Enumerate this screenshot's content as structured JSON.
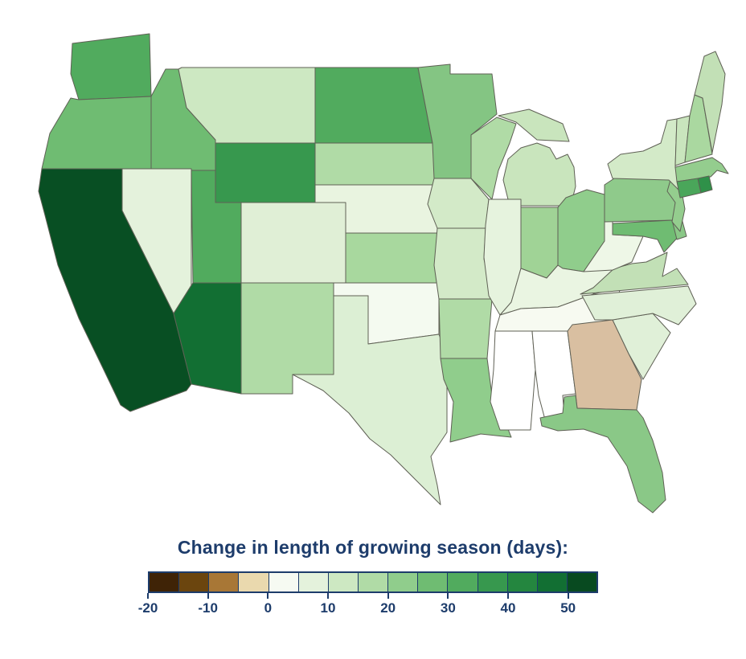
{
  "title": "Change in length of growing season (days):",
  "colors": {
    "background": "#ffffff",
    "title_text": "#1d3c6b",
    "state_border": "#5f6055",
    "legend_border": "#1d3c6b",
    "no_change_fill": "#ffffff"
  },
  "legend": {
    "range": [
      -20,
      55
    ],
    "tick_labels": [
      "-20",
      "-10",
      "0",
      "10",
      "20",
      "30",
      "40",
      "50"
    ],
    "tick_values": [
      -20,
      -10,
      0,
      10,
      20,
      30,
      40,
      50
    ],
    "segment_size_days": 5,
    "segment_colors": [
      "#3f2306",
      "#6b450e",
      "#a87736",
      "#ead9ae",
      "#f6faf2",
      "#e4f2dc",
      "#cde8c2",
      "#b0dba6",
      "#90cd8c",
      "#6fbc72",
      "#51ab5e",
      "#37984e",
      "#24863f",
      "#126f33",
      "#084a20"
    ]
  },
  "chart_data": {
    "type": "choropleth",
    "title": "Change in length of growing season (days)",
    "unit": "days",
    "region": "Contiguous United States",
    "legend_position": "bottom",
    "color_scale": "brown (decrease) to white (no change) to dark green (increase), -20 to 50+ days",
    "states": [
      {
        "name": "Washington",
        "abbr": "WA",
        "value": 31,
        "color": "#51ab5e"
      },
      {
        "name": "Oregon",
        "abbr": "OR",
        "value": 26,
        "color": "#6fbc72"
      },
      {
        "name": "California",
        "abbr": "CA",
        "value": 52,
        "color": "#084f23"
      },
      {
        "name": "Nevada",
        "abbr": "NV",
        "value": 6,
        "color": "#e4f2dc"
      },
      {
        "name": "Idaho",
        "abbr": "ID",
        "value": 26,
        "color": "#6fbc72"
      },
      {
        "name": "Montana",
        "abbr": "MT",
        "value": 10,
        "color": "#cde8c2"
      },
      {
        "name": "Wyoming",
        "abbr": "WY",
        "value": 36,
        "color": "#37984e"
      },
      {
        "name": "Utah",
        "abbr": "UT",
        "value": 31,
        "color": "#51ab5e"
      },
      {
        "name": "Colorado",
        "abbr": "CO",
        "value": 8,
        "color": "#e0efd6"
      },
      {
        "name": "Arizona",
        "abbr": "AZ",
        "value": 46,
        "color": "#126f33"
      },
      {
        "name": "New Mexico",
        "abbr": "NM",
        "value": 16,
        "color": "#b0dba6"
      },
      {
        "name": "North Dakota",
        "abbr": "ND",
        "value": 31,
        "color": "#51ab5e"
      },
      {
        "name": "South Dakota",
        "abbr": "SD",
        "value": 18,
        "color": "#b0dba6"
      },
      {
        "name": "Nebraska",
        "abbr": "NE",
        "value": 5,
        "color": "#e9f4e0"
      },
      {
        "name": "Kansas",
        "abbr": "KS",
        "value": 18,
        "color": "#a8d89e"
      },
      {
        "name": "Oklahoma",
        "abbr": "OK",
        "value": 2,
        "color": "#f4faf0"
      },
      {
        "name": "Texas",
        "abbr": "TX",
        "value": 8,
        "color": "#dcefd4"
      },
      {
        "name": "Minnesota",
        "abbr": "MN",
        "value": 24,
        "color": "#84c583"
      },
      {
        "name": "Iowa",
        "abbr": "IA",
        "value": 10,
        "color": "#d3eac8"
      },
      {
        "name": "Missouri",
        "abbr": "MO",
        "value": 10,
        "color": "#d3eac8"
      },
      {
        "name": "Arkansas",
        "abbr": "AR",
        "value": 16,
        "color": "#b0dba6"
      },
      {
        "name": "Louisiana",
        "abbr": "LA",
        "value": 22,
        "color": "#90cd8c"
      },
      {
        "name": "Wisconsin",
        "abbr": "WI",
        "value": 15,
        "color": "#b0dba6"
      },
      {
        "name": "Illinois",
        "abbr": "IL",
        "value": 6,
        "color": "#e6f3de"
      },
      {
        "name": "Michigan",
        "abbr": "MI",
        "value": 12,
        "color": "#c9e5bd"
      },
      {
        "name": "Indiana",
        "abbr": "IN",
        "value": 19,
        "color": "#a0d396"
      },
      {
        "name": "Ohio",
        "abbr": "OH",
        "value": 20,
        "color": "#90cd8c"
      },
      {
        "name": "Kentucky",
        "abbr": "KY",
        "value": 4,
        "color": "#eaf5e2"
      },
      {
        "name": "Tennessee",
        "abbr": "TN",
        "value": 1,
        "color": "#f7faf1"
      },
      {
        "name": "Mississippi",
        "abbr": "MS",
        "value": 0,
        "color": "#ffffff"
      },
      {
        "name": "Alabama",
        "abbr": "AL",
        "value": 0,
        "color": "#ffffff"
      },
      {
        "name": "Georgia",
        "abbr": "GA",
        "value": -6,
        "color": "#d9bfa1"
      },
      {
        "name": "Florida",
        "abbr": "FL",
        "value": 23,
        "color": "#8ac887"
      },
      {
        "name": "South Carolina",
        "abbr": "SC",
        "value": 7,
        "color": "#e0f0d8"
      },
      {
        "name": "North Carolina",
        "abbr": "NC",
        "value": 7,
        "color": "#e0f0d8"
      },
      {
        "name": "Virginia",
        "abbr": "VA",
        "value": 13,
        "color": "#c2e0b6"
      },
      {
        "name": "West Virginia",
        "abbr": "WV",
        "value": 4,
        "color": "#eef7e7"
      },
      {
        "name": "Pennsylvania",
        "abbr": "PA",
        "value": 21,
        "color": "#8fca8b"
      },
      {
        "name": "New York",
        "abbr": "NY",
        "value": 10,
        "color": "#d3eac8"
      },
      {
        "name": "Vermont",
        "abbr": "VT",
        "value": 12,
        "color": "#c9e5bd"
      },
      {
        "name": "New Hampshire",
        "abbr": "NH",
        "value": 17,
        "color": "#aad8a0"
      },
      {
        "name": "Maine",
        "abbr": "ME",
        "value": 13,
        "color": "#c2e0b6"
      },
      {
        "name": "Massachusetts",
        "abbr": "MA",
        "value": 20,
        "color": "#94cd8e"
      },
      {
        "name": "Rhode Island",
        "abbr": "RI",
        "value": 36,
        "color": "#2f9149"
      },
      {
        "name": "Connecticut",
        "abbr": "CT",
        "value": 31,
        "color": "#4aa65a"
      },
      {
        "name": "New Jersey",
        "abbr": "NJ",
        "value": 20,
        "color": "#94cd8e"
      },
      {
        "name": "Delaware",
        "abbr": "DE",
        "value": 23,
        "color": "#8ac887"
      },
      {
        "name": "Maryland",
        "abbr": "MD",
        "value": 26,
        "color": "#6fbc72"
      }
    ]
  }
}
